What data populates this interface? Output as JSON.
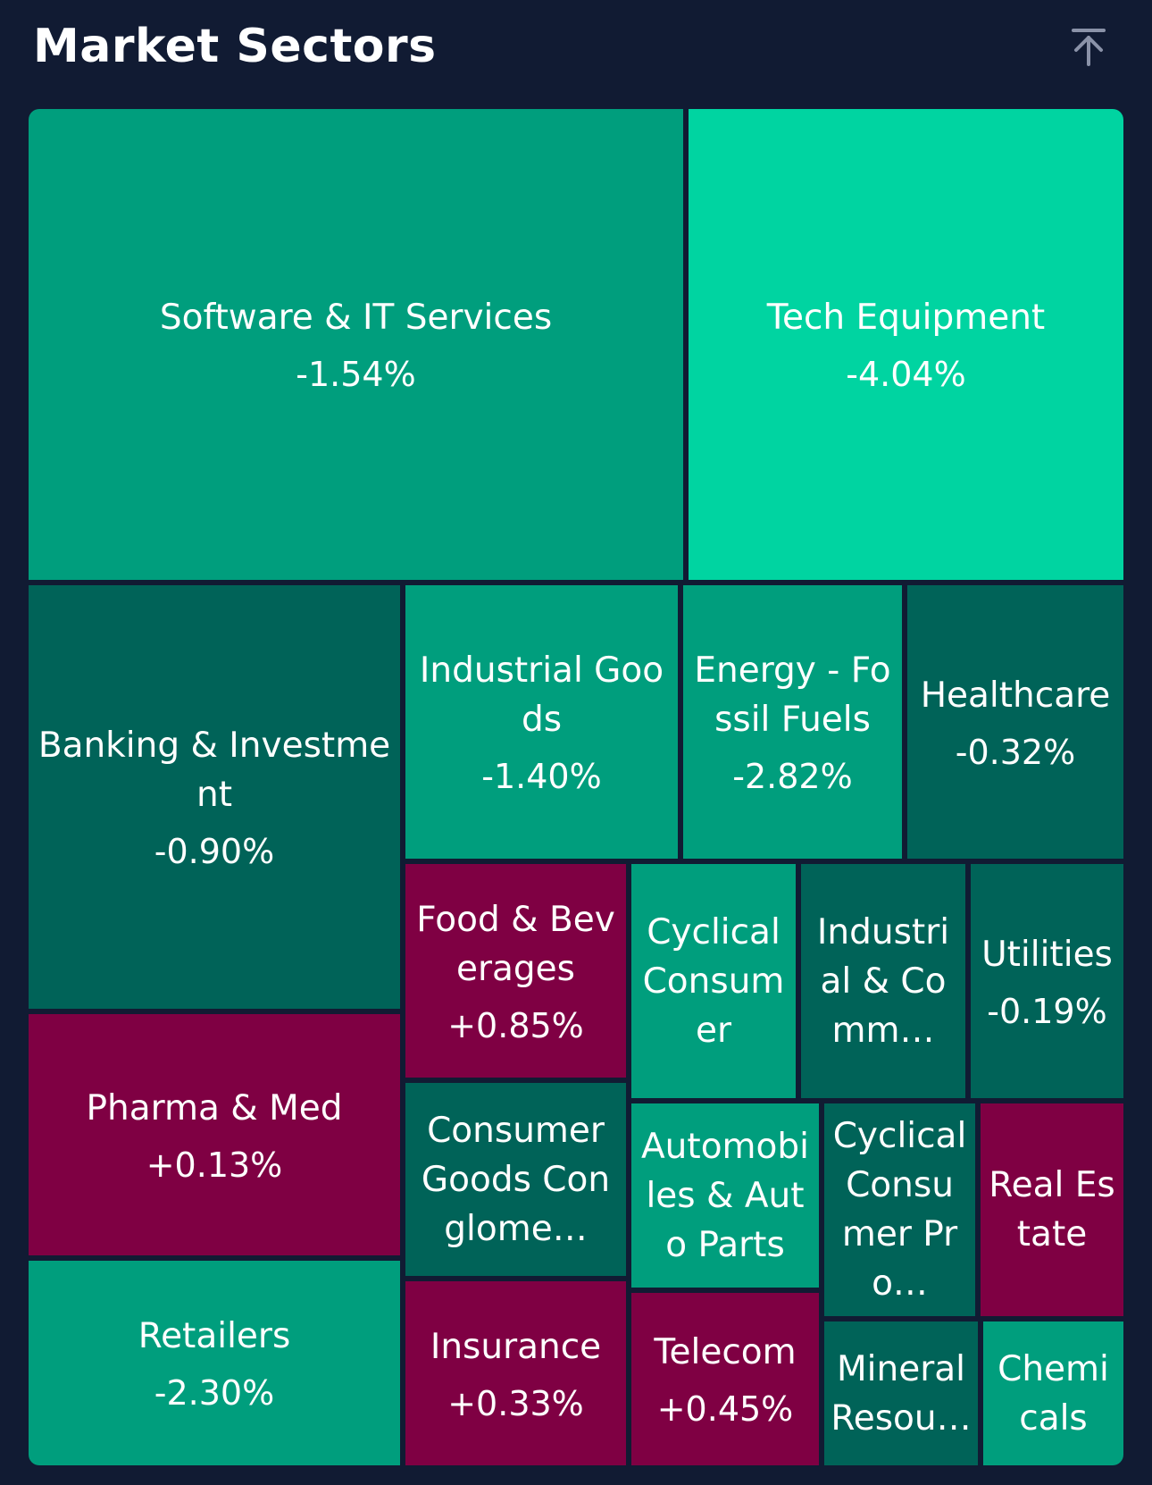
{
  "header": {
    "title": "Market Sectors",
    "scroll_top_icon": "arrow-up-to-top-icon"
  },
  "colors": {
    "background": "#111b33",
    "pos_strong": "#00d4a1",
    "pos_medium": "#009e7d",
    "pos_weak": "#006358",
    "negative": "#7f0043"
  },
  "chart_data": {
    "type": "treemap",
    "title": "Market Sectors",
    "tiles": [
      {
        "label": "Software & IT Services",
        "value": "-1.54%",
        "color": "#009e7d"
      },
      {
        "label": "Tech Equipment",
        "value": "-4.04%",
        "color": "#00d4a1"
      },
      {
        "label": "Banking & Investment",
        "value": "-0.90%",
        "color": "#006358"
      },
      {
        "label": "Industrial Goods",
        "value": "-1.40%",
        "color": "#009e7d"
      },
      {
        "label": "Energy - Fossil Fuels",
        "value": "-2.82%",
        "color": "#009e7d"
      },
      {
        "label": "Healthcare",
        "value": "-0.32%",
        "color": "#006358"
      },
      {
        "label": "Pharma & Med",
        "value": "+0.13%",
        "color": "#7f0043"
      },
      {
        "label": "Retailers",
        "value": "-2.30%",
        "color": "#009e7d"
      },
      {
        "label": "Food & Beverages",
        "value": "+0.85%",
        "color": "#7f0043"
      },
      {
        "label": "Cyclical Consumer",
        "value": "",
        "color": "#009e7d"
      },
      {
        "label": "Industrial & Comm…",
        "value": "",
        "color": "#006358"
      },
      {
        "label": "Utilities",
        "value": "-0.19%",
        "color": "#006358"
      },
      {
        "label": "Consumer Goods Conglome…",
        "value": "",
        "color": "#006358"
      },
      {
        "label": "Automobiles & Auto Parts",
        "value": "",
        "color": "#009e7d"
      },
      {
        "label": "Cyclical Consumer Pro…",
        "value": "",
        "color": "#006358"
      },
      {
        "label": "Real Estate",
        "value": "",
        "color": "#7f0043"
      },
      {
        "label": "Insurance",
        "value": "+0.33%",
        "color": "#7f0043"
      },
      {
        "label": "Telecom",
        "value": "+0.45%",
        "color": "#7f0043"
      },
      {
        "label": "Mineral Resou…",
        "value": "",
        "color": "#006358"
      },
      {
        "label": "Chemicals",
        "value": "",
        "color": "#009e7d"
      }
    ]
  }
}
